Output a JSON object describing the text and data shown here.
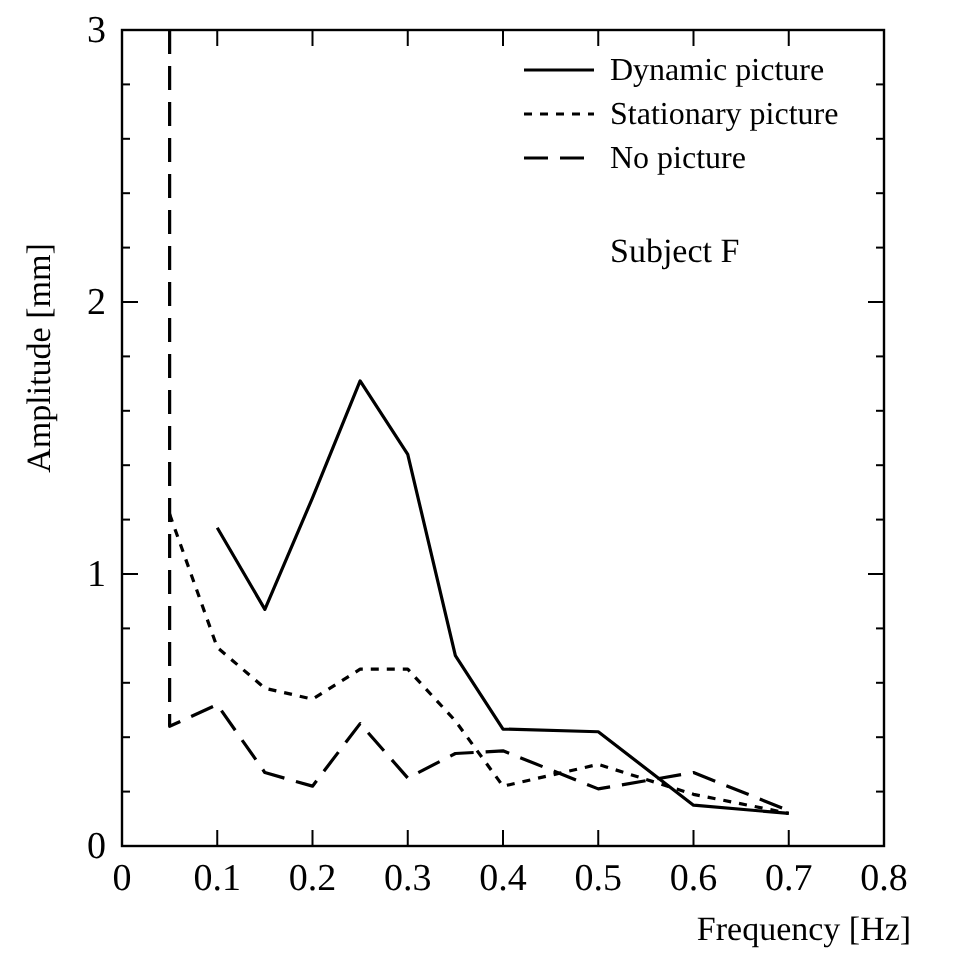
{
  "chart_data": {
    "type": "line",
    "xlabel": "Frequency  [Hz]",
    "ylabel": "Amplitude  [mm]",
    "xlim": [
      0,
      0.8
    ],
    "xticks": [
      0,
      0.1,
      0.2,
      0.3,
      0.4,
      0.5,
      0.6,
      0.7,
      0.8
    ],
    "ylim": [
      0,
      3
    ],
    "yticks": [
      0,
      {
        "value": 0.2,
        "label": null
      },
      {
        "value": 0.4,
        "label": null
      },
      {
        "value": 0.6,
        "label": null
      },
      {
        "value": 0.8,
        "label": null
      },
      1,
      {
        "value": 1.2,
        "label": null
      },
      {
        "value": 1.4,
        "label": null
      },
      {
        "value": 1.6,
        "label": null
      },
      {
        "value": 1.8,
        "label": null
      },
      2,
      {
        "value": 2.2,
        "label": null
      },
      {
        "value": 2.4,
        "label": null
      },
      {
        "value": 2.6,
        "label": null
      },
      {
        "value": 2.8,
        "label": null
      },
      3
    ],
    "grid": false,
    "legend": "top right",
    "marker": "none",
    "annotations": [
      "Subject F"
    ],
    "series": [
      {
        "name": "Dynamic picture",
        "color": "#000000",
        "line_style": "solid",
        "x": [
          0.1,
          0.15,
          0.2,
          0.25,
          0.3,
          0.35,
          0.4,
          0.5,
          0.6,
          0.7
        ],
        "values": [
          1.17,
          0.87,
          1.28,
          1.71,
          1.44,
          0.7,
          0.43,
          0.42,
          0.15,
          0.12
        ]
      },
      {
        "name": "Stationary picture",
        "color": "#000000",
        "line_style": "dotted",
        "x": [
          0.05,
          0.1,
          0.15,
          0.2,
          0.25,
          0.3,
          0.35,
          0.4,
          0.5,
          0.6,
          0.7
        ],
        "values": [
          1.22,
          0.73,
          0.58,
          0.54,
          0.65,
          0.65,
          0.46,
          0.22,
          0.3,
          0.19,
          0.12
        ]
      },
      {
        "name": "No picture",
        "color": "#000000",
        "line_style": "dashed",
        "x": [
          0.05,
          0.05,
          0.1,
          0.15,
          0.2,
          0.25,
          0.3,
          0.35,
          0.4,
          0.5,
          0.6,
          0.7
        ],
        "values": [
          3,
          0.44,
          0.52,
          0.27,
          0.22,
          0.45,
          0.25,
          0.34,
          0.35,
          0.21,
          0.27,
          0.13
        ]
      }
    ]
  }
}
